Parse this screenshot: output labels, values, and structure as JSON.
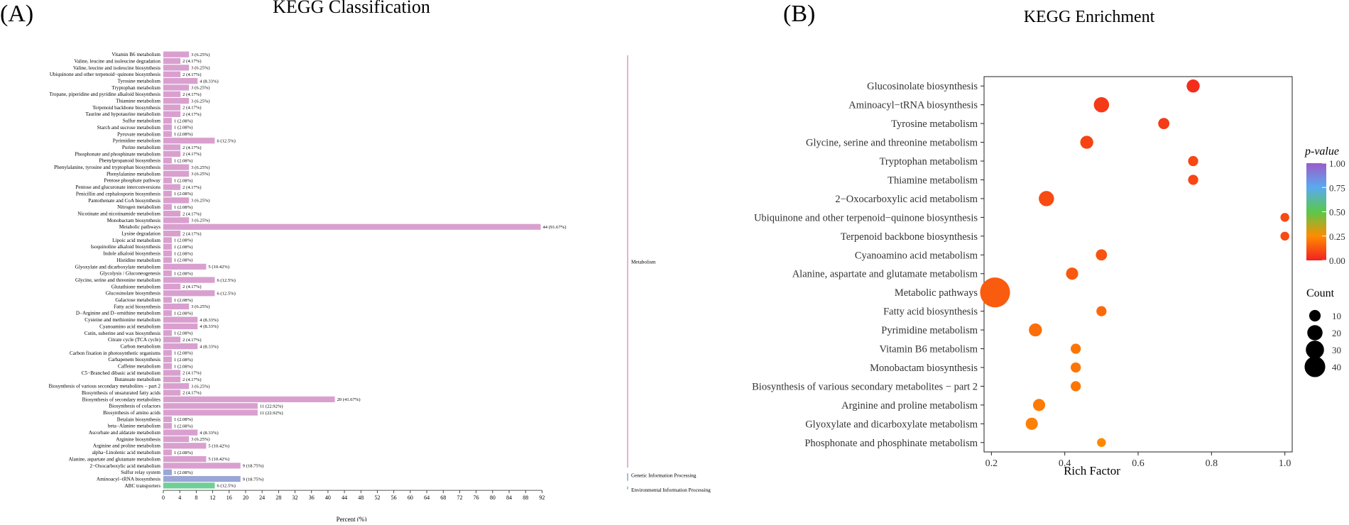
{
  "panels": {
    "a_label": "(A)",
    "b_label": "(B)"
  },
  "chart_data": [
    {
      "type": "bar",
      "title": "KEGG Classification",
      "xlabel": "Percent (%)",
      "xlim": [
        0,
        94
      ],
      "xticks": [
        0,
        4,
        8,
        12,
        16,
        20,
        24,
        28,
        32,
        36,
        40,
        44,
        48,
        52,
        56,
        60,
        64,
        68,
        72,
        76,
        80,
        84,
        88,
        92
      ],
      "colors": {
        "Metabolism": "#d9a0cf",
        "Genetic Information Processing": "#9aa6d6",
        "Environmental Information Processing": "#6fcf97"
      },
      "categories": [
        {
          "name": "Vitamin B6 metabolism",
          "count": 3,
          "percent": 6.25,
          "label": "3 (6.25%)",
          "group": "Metabolism"
        },
        {
          "name": "Valine, leucine and isoleucine degradation",
          "count": 2,
          "percent": 4.17,
          "label": "2 (4.17%)",
          "group": "Metabolism"
        },
        {
          "name": "Valine, leucine and isoleucine biosynthesis",
          "count": 3,
          "percent": 6.25,
          "label": "3 (6.25%)",
          "group": "Metabolism"
        },
        {
          "name": "Ubiquinone and other terpenoid−quinone biosynthesis",
          "count": 2,
          "percent": 4.17,
          "label": "2 (4.17%)",
          "group": "Metabolism"
        },
        {
          "name": "Tyrosine metabolism",
          "count": 4,
          "percent": 8.33,
          "label": "4 (8.33%)",
          "group": "Metabolism"
        },
        {
          "name": "Tryptophan metabolism",
          "count": 3,
          "percent": 6.25,
          "label": "3 (6.25%)",
          "group": "Metabolism"
        },
        {
          "name": "Tropane, piperidine and pyridine alkaloid biosynthesis",
          "count": 2,
          "percent": 4.17,
          "label": "2 (4.17%)",
          "group": "Metabolism"
        },
        {
          "name": "Thiamine metabolism",
          "count": 3,
          "percent": 6.25,
          "label": "3 (6.25%)",
          "group": "Metabolism"
        },
        {
          "name": "Terpenoid backbone biosynthesis",
          "count": 2,
          "percent": 4.17,
          "label": "2 (4.17%)",
          "group": "Metabolism"
        },
        {
          "name": "Taurine and hypotaurine metabolism",
          "count": 2,
          "percent": 4.17,
          "label": "2 (4.17%)",
          "group": "Metabolism"
        },
        {
          "name": "Sulfur metabolism",
          "count": 1,
          "percent": 2.08,
          "label": "1 (2.08%)",
          "group": "Metabolism"
        },
        {
          "name": "Starch and sucrose metabolism",
          "count": 1,
          "percent": 2.08,
          "label": "1 (2.08%)",
          "group": "Metabolism"
        },
        {
          "name": "Pyruvate metabolism",
          "count": 1,
          "percent": 2.08,
          "label": "1 (2.08%)",
          "group": "Metabolism"
        },
        {
          "name": "Pyrimidine metabolism",
          "count": 6,
          "percent": 12.5,
          "label": "6 (12.5%)",
          "group": "Metabolism"
        },
        {
          "name": "Purine metabolism",
          "count": 2,
          "percent": 4.17,
          "label": "2 (4.17%)",
          "group": "Metabolism"
        },
        {
          "name": "Phosphonate and phosphinate metabolism",
          "count": 2,
          "percent": 4.17,
          "label": "2 (4.17%)",
          "group": "Metabolism"
        },
        {
          "name": "Phenylpropanoid biosynthesis",
          "count": 1,
          "percent": 2.08,
          "label": "1 (2.08%)",
          "group": "Metabolism"
        },
        {
          "name": "Phenylalanine, tyrosine and tryptophan biosynthesis",
          "count": 3,
          "percent": 6.25,
          "label": "3 (6.25%)",
          "group": "Metabolism"
        },
        {
          "name": "Phenylalanine metabolism",
          "count": 3,
          "percent": 6.25,
          "label": "3 (6.25%)",
          "group": "Metabolism"
        },
        {
          "name": "Pentose phosphate pathway",
          "count": 1,
          "percent": 2.08,
          "label": "1 (2.08%)",
          "group": "Metabolism"
        },
        {
          "name": "Pentose and glucuronate interconversions",
          "count": 2,
          "percent": 4.17,
          "label": "2 (4.17%)",
          "group": "Metabolism"
        },
        {
          "name": "Penicillin and cephalosporin biosynthesis",
          "count": 1,
          "percent": 2.08,
          "label": "1 (2.08%)",
          "group": "Metabolism"
        },
        {
          "name": "Pantothenate and CoA biosynthesis",
          "count": 3,
          "percent": 6.25,
          "label": "3 (6.25%)",
          "group": "Metabolism"
        },
        {
          "name": "Nitrogen metabolism",
          "count": 1,
          "percent": 2.08,
          "label": "1 (2.08%)",
          "group": "Metabolism"
        },
        {
          "name": "Nicotinate and nicotinamide metabolism",
          "count": 2,
          "percent": 4.17,
          "label": "2 (4.17%)",
          "group": "Metabolism"
        },
        {
          "name": "Monobactam biosynthesis",
          "count": 3,
          "percent": 6.25,
          "label": "3 (6.25%)",
          "group": "Metabolism"
        },
        {
          "name": "Metabolic pathways",
          "count": 44,
          "percent": 91.67,
          "label": "44 (91.67%)",
          "group": "Metabolism"
        },
        {
          "name": "Lysine degradation",
          "count": 2,
          "percent": 4.17,
          "label": "2 (4.17%)",
          "group": "Metabolism"
        },
        {
          "name": "Lipoic acid metabolism",
          "count": 1,
          "percent": 2.08,
          "label": "1 (2.08%)",
          "group": "Metabolism"
        },
        {
          "name": "Isoquinoline alkaloid biosynthesis",
          "count": 1,
          "percent": 2.08,
          "label": "1 (2.08%)",
          "group": "Metabolism"
        },
        {
          "name": "Indole alkaloid biosynthesis",
          "count": 1,
          "percent": 2.08,
          "label": "1 (2.08%)",
          "group": "Metabolism"
        },
        {
          "name": "Histidine metabolism",
          "count": 1,
          "percent": 2.08,
          "label": "1 (2.08%)",
          "group": "Metabolism"
        },
        {
          "name": "Glyoxylate and dicarboxylate metabolism",
          "count": 5,
          "percent": 10.42,
          "label": "5 (10.42%)",
          "group": "Metabolism"
        },
        {
          "name": "Glycolysis / Gluconeogenesis",
          "count": 1,
          "percent": 2.08,
          "label": "1 (2.08%)",
          "group": "Metabolism"
        },
        {
          "name": "Glycine, serine and threonine metabolism",
          "count": 6,
          "percent": 12.5,
          "label": "6 (12.5%)",
          "group": "Metabolism"
        },
        {
          "name": "Glutathione metabolism",
          "count": 2,
          "percent": 4.17,
          "label": "2 (4.17%)",
          "group": "Metabolism"
        },
        {
          "name": "Glucosinolate biosynthesis",
          "count": 6,
          "percent": 12.5,
          "label": "6 (12.5%)",
          "group": "Metabolism"
        },
        {
          "name": "Galactose metabolism",
          "count": 1,
          "percent": 2.08,
          "label": "1 (2.08%)",
          "group": "Metabolism"
        },
        {
          "name": "Fatty acid biosynthesis",
          "count": 3,
          "percent": 6.25,
          "label": "3 (6.25%)",
          "group": "Metabolism"
        },
        {
          "name": "D−Arginine and D−ornithine metabolism",
          "count": 1,
          "percent": 2.08,
          "label": "1 (2.08%)",
          "group": "Metabolism"
        },
        {
          "name": "Cysteine and methionine metabolism",
          "count": 4,
          "percent": 8.33,
          "label": "4 (8.33%)",
          "group": "Metabolism"
        },
        {
          "name": "Cyanoamino acid metabolism",
          "count": 4,
          "percent": 8.33,
          "label": "4 (8.33%)",
          "group": "Metabolism"
        },
        {
          "name": "Cutin, suberine and wax biosynthesis",
          "count": 1,
          "percent": 2.08,
          "label": "1 (2.08%)",
          "group": "Metabolism"
        },
        {
          "name": "Citrate cycle (TCA cycle)",
          "count": 2,
          "percent": 4.17,
          "label": "2 (4.17%)",
          "group": "Metabolism"
        },
        {
          "name": "Carbon metabolism",
          "count": 4,
          "percent": 8.33,
          "label": "4 (8.33%)",
          "group": "Metabolism"
        },
        {
          "name": "Carbon fixation in photosynthetic organisms",
          "count": 1,
          "percent": 2.08,
          "label": "1 (2.08%)",
          "group": "Metabolism"
        },
        {
          "name": "Carbapenem biosynthesis",
          "count": 1,
          "percent": 2.08,
          "label": "1 (2.08%)",
          "group": "Metabolism"
        },
        {
          "name": "Caffeine metabolism",
          "count": 1,
          "percent": 2.08,
          "label": "1 (2.08%)",
          "group": "Metabolism"
        },
        {
          "name": "C5−Branched dibasic acid metabolism",
          "count": 2,
          "percent": 4.17,
          "label": "2 (4.17%)",
          "group": "Metabolism"
        },
        {
          "name": "Butanoate metabolism",
          "count": 2,
          "percent": 4.17,
          "label": "2 (4.17%)",
          "group": "Metabolism"
        },
        {
          "name": "Biosynthesis of various secondary metabolites − part 2",
          "count": 3,
          "percent": 6.25,
          "label": "3 (6.25%)",
          "group": "Metabolism"
        },
        {
          "name": "Biosynthesis of unsaturated fatty acids",
          "count": 2,
          "percent": 4.17,
          "label": "2 (4.17%)",
          "group": "Metabolism"
        },
        {
          "name": "Biosynthesis of secondary metabolites",
          "count": 20,
          "percent": 41.67,
          "label": "20 (41.67%)",
          "group": "Metabolism"
        },
        {
          "name": "Biosynthesis of cofactors",
          "count": 11,
          "percent": 22.92,
          "label": "11 (22.92%)",
          "group": "Metabolism"
        },
        {
          "name": "Biosynthesis of amino acids",
          "count": 11,
          "percent": 22.92,
          "label": "11 (22.92%)",
          "group": "Metabolism"
        },
        {
          "name": "Betalain biosynthesis",
          "count": 1,
          "percent": 2.08,
          "label": "1 (2.08%)",
          "group": "Metabolism"
        },
        {
          "name": "beta−Alanine metabolism",
          "count": 1,
          "percent": 2.08,
          "label": "1 (2.08%)",
          "group": "Metabolism"
        },
        {
          "name": "Ascorbate and aldarate metabolism",
          "count": 4,
          "percent": 8.33,
          "label": "4 (8.33%)",
          "group": "Metabolism"
        },
        {
          "name": "Arginine biosynthesis",
          "count": 3,
          "percent": 6.25,
          "label": "3 (6.25%)",
          "group": "Metabolism"
        },
        {
          "name": "Arginine and proline metabolism",
          "count": 5,
          "percent": 10.42,
          "label": "5 (10.42%)",
          "group": "Metabolism"
        },
        {
          "name": "alpha−Linolenic acid metabolism",
          "count": 1,
          "percent": 2.08,
          "label": "1 (2.08%)",
          "group": "Metabolism"
        },
        {
          "name": "Alanine, aspartate and glutamate metabolism",
          "count": 5,
          "percent": 10.42,
          "label": "5 (10.42%)",
          "group": "Metabolism"
        },
        {
          "name": "2−Oxocarboxylic acid metabolism",
          "count": 9,
          "percent": 18.75,
          "label": "9 (18.75%)",
          "group": "Metabolism"
        },
        {
          "name": "Sulfur relay system",
          "count": 1,
          "percent": 2.08,
          "label": "1 (2.08%)",
          "group": "Genetic Information Processing"
        },
        {
          "name": "Aminoacyl−tRNA biosynthesis",
          "count": 9,
          "percent": 18.75,
          "label": "9 (18.75%)",
          "group": "Genetic Information Processing"
        },
        {
          "name": "ABC transporters",
          "count": 6,
          "percent": 12.5,
          "label": "6 (12.5%)",
          "group": "Environmental Information Processing"
        }
      ],
      "groups": [
        "Metabolism",
        "Genetic Information Processing",
        "Environmental Information Processing"
      ]
    },
    {
      "type": "scatter",
      "title": "KEGG Enrichment",
      "xlabel": "Rich Factor",
      "xlim": [
        0.18,
        1.02
      ],
      "xticks": [
        0.2,
        0.4,
        0.6,
        0.8,
        1.0
      ],
      "xtick_labels": [
        "0.2",
        "0.4",
        "0.6",
        "0.8",
        "1.0"
      ],
      "points": [
        {
          "term": "Glucosinolate biosynthesis",
          "rich_factor": 0.75,
          "count": 6,
          "p_value": 0.03
        },
        {
          "term": "Aminoacyl−tRNA biosynthesis",
          "rich_factor": 0.5,
          "count": 9,
          "p_value": 0.06
        },
        {
          "term": "Tyrosine metabolism",
          "rich_factor": 0.67,
          "count": 4,
          "p_value": 0.06
        },
        {
          "term": "Glycine, serine and threonine metabolism",
          "rich_factor": 0.46,
          "count": 6,
          "p_value": 0.08
        },
        {
          "term": "Tryptophan metabolism",
          "rich_factor": 0.75,
          "count": 3,
          "p_value": 0.09
        },
        {
          "term": "Thiamine metabolism",
          "rich_factor": 0.75,
          "count": 3,
          "p_value": 0.09
        },
        {
          "term": "2−Oxocarboxylic acid metabolism",
          "rich_factor": 0.35,
          "count": 9,
          "p_value": 0.1
        },
        {
          "term": "Ubiquinone and other terpenoid−quinone biosynthesis",
          "rich_factor": 1.0,
          "count": 2,
          "p_value": 0.1
        },
        {
          "term": "Terpenoid backbone biosynthesis",
          "rich_factor": 1.0,
          "count": 2,
          "p_value": 0.1
        },
        {
          "term": "Cyanoamino acid metabolism",
          "rich_factor": 0.5,
          "count": 4,
          "p_value": 0.12
        },
        {
          "term": "Alanine, aspartate and glutamate metabolism",
          "rich_factor": 0.42,
          "count": 5,
          "p_value": 0.13
        },
        {
          "term": "Metabolic pathways",
          "rich_factor": 0.21,
          "count": 44,
          "p_value": 0.14
        },
        {
          "term": "Fatty acid biosynthesis",
          "rich_factor": 0.5,
          "count": 3,
          "p_value": 0.17
        },
        {
          "term": "Pyrimidine metabolism",
          "rich_factor": 0.32,
          "count": 6,
          "p_value": 0.18
        },
        {
          "term": "Vitamin B6 metabolism",
          "rich_factor": 0.43,
          "count": 3,
          "p_value": 0.2
        },
        {
          "term": "Monobactam biosynthesis",
          "rich_factor": 0.43,
          "count": 3,
          "p_value": 0.2
        },
        {
          "term": "Biosynthesis of various secondary metabolites − part 2",
          "rich_factor": 0.43,
          "count": 3,
          "p_value": 0.2
        },
        {
          "term": "Arginine and proline metabolism",
          "rich_factor": 0.33,
          "count": 5,
          "p_value": 0.21
        },
        {
          "term": "Glyoxylate and dicarboxylate metabolism",
          "rich_factor": 0.31,
          "count": 5,
          "p_value": 0.22
        },
        {
          "term": "Phosphonate and phosphinate metabolism",
          "rich_factor": 0.5,
          "count": 2,
          "p_value": 0.24
        }
      ],
      "color_legend": {
        "title": "p-value",
        "ticks": [
          1.0,
          0.75,
          0.5,
          0.25,
          0.0
        ],
        "tick_labels": [
          "1.00",
          "0.75",
          "0.50",
          "0.25",
          "0.00"
        ],
        "colors": [
          "#f22020",
          "#ff8c00",
          "#5ac84a",
          "#5aaaf0",
          "#9b5cc9"
        ]
      },
      "size_legend": {
        "title": "Count",
        "values": [
          10,
          20,
          30,
          40
        ],
        "labels": [
          "10",
          "20",
          "30",
          "40"
        ]
      }
    }
  ]
}
